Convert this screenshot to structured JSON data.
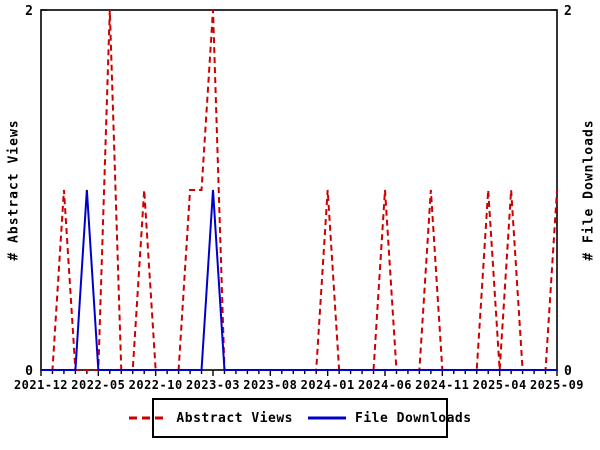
{
  "chart_data": {
    "type": "line",
    "title": "",
    "left_axis_label": "# Abstract Views",
    "right_axis_label": "# File Downloads",
    "x": [
      "2021-12",
      "2022-01",
      "2022-02",
      "2022-03",
      "2022-04",
      "2022-05",
      "2022-06",
      "2022-07",
      "2022-08",
      "2022-09",
      "2022-10",
      "2022-11",
      "2022-12",
      "2023-01",
      "2023-02",
      "2023-03",
      "2023-04",
      "2023-05",
      "2023-06",
      "2023-07",
      "2023-08",
      "2023-09",
      "2023-10",
      "2023-11",
      "2023-12",
      "2024-01",
      "2024-02",
      "2024-03",
      "2024-04",
      "2024-05",
      "2024-06",
      "2024-07",
      "2024-08",
      "2024-09",
      "2024-10",
      "2024-11",
      "2024-12",
      "2025-01",
      "2025-02",
      "2025-03",
      "2025-04",
      "2025-05",
      "2025-06",
      "2025-07",
      "2025-08",
      "2025-09"
    ],
    "x_tick_step": 5,
    "x_tick_labels": [
      "2021-12",
      "2022-05",
      "2022-10",
      "2023-03",
      "2023-08",
      "2024-01",
      "2024-06",
      "2024-11",
      "2025-04",
      "2025-09"
    ],
    "ylim": [
      0,
      2
    ],
    "y_ticks": [
      0,
      2
    ],
    "grid": false,
    "legend_position": "bottom-center",
    "series": [
      {
        "name": "Abstract Views",
        "color": "#cc0000",
        "style": "dashed",
        "values": [
          0,
          0,
          1,
          0,
          0,
          0,
          2,
          0,
          0,
          1,
          0,
          0,
          0,
          1,
          1,
          2,
          0,
          0,
          0,
          0,
          0,
          0,
          0,
          0,
          0,
          1,
          0,
          0,
          0,
          0,
          1,
          0,
          0,
          0,
          1,
          0,
          0,
          0,
          0,
          1,
          0,
          1,
          0,
          0,
          0,
          1
        ]
      },
      {
        "name": "File Downloads",
        "color": "#0000cc",
        "style": "solid",
        "values": [
          0,
          0,
          0,
          0,
          1,
          0,
          0,
          0,
          0,
          0,
          0,
          0,
          0,
          0,
          0,
          1,
          0,
          0,
          0,
          0,
          0,
          0,
          0,
          0,
          0,
          0,
          0,
          0,
          0,
          0,
          0,
          0,
          0,
          0,
          0,
          0,
          0,
          0,
          0,
          0,
          0,
          0,
          0,
          0,
          0,
          0
        ]
      }
    ],
    "axis_color": "#000000",
    "background_color": "#ffffff"
  }
}
